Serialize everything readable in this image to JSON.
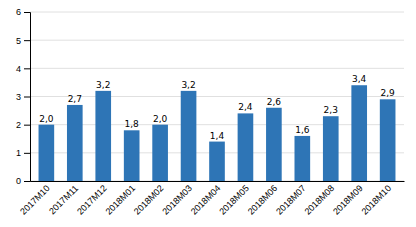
{
  "chart_data": {
    "type": "bar",
    "categories": [
      "2017M10",
      "2017M11",
      "2017M12",
      "2018M01",
      "2018M02",
      "2018M03",
      "2018M04",
      "2018M05",
      "2018M06",
      "2018M07",
      "2018M08",
      "2018M09",
      "2018M10"
    ],
    "values": [
      2.0,
      2.7,
      3.2,
      1.8,
      2.0,
      3.2,
      1.4,
      2.4,
      2.6,
      1.6,
      2.3,
      3.4,
      2.9
    ],
    "value_labels": [
      "2,0",
      "2,7",
      "3,2",
      "1,8",
      "2,0",
      "3,2",
      "1,4",
      "2,4",
      "2,6",
      "1,6",
      "2,3",
      "3,4",
      "2,9"
    ],
    "data_labels": true,
    "color": "#2E75B6",
    "ylim": [
      0,
      6
    ],
    "yticks": [
      0,
      1,
      2,
      3,
      4,
      5,
      6
    ],
    "grid": true
  }
}
